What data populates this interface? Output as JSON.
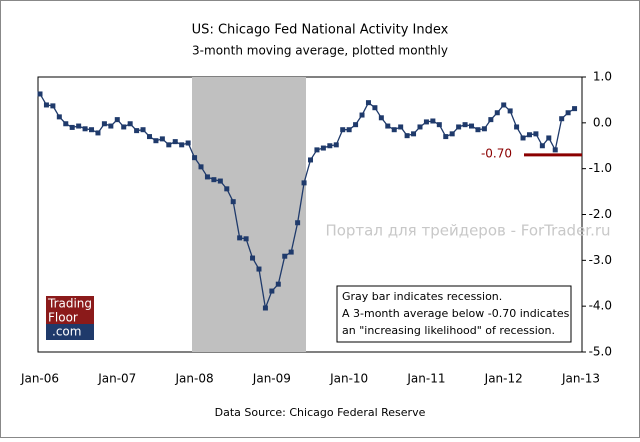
{
  "chart_data": {
    "type": "line",
    "title": "US: Chicago Fed National Activity Index",
    "subtitle": "3-month moving average, plotted monthly",
    "categories": [
      "Jan-06",
      null,
      null,
      null,
      null,
      null,
      null,
      null,
      null,
      null,
      null,
      null,
      "Jan-07",
      null,
      null,
      null,
      null,
      null,
      null,
      null,
      null,
      null,
      null,
      null,
      "Jan-08",
      null,
      null,
      null,
      null,
      null,
      null,
      null,
      null,
      null,
      null,
      null,
      "Jan-09",
      null,
      null,
      null,
      null,
      null,
      null,
      null,
      null,
      null,
      null,
      null,
      "Jan-10",
      null,
      null,
      null,
      null,
      null,
      null,
      null,
      null,
      null,
      null,
      null,
      "Jan-11",
      null,
      null,
      null,
      null,
      null,
      null,
      null,
      null,
      null,
      null,
      null,
      "Jan-12",
      null,
      null,
      null,
      null,
      null,
      null,
      null,
      null,
      null,
      null,
      null,
      "Jan-13"
    ],
    "series": [
      {
        "color": "#1f3a6b",
        "values": [
          0.63,
          0.39,
          0.37,
          0.13,
          -0.02,
          -0.1,
          -0.07,
          -0.13,
          -0.15,
          -0.22,
          -0.02,
          -0.07,
          0.07,
          -0.09,
          -0.02,
          -0.17,
          -0.15,
          -0.3,
          -0.39,
          -0.35,
          -0.48,
          -0.41,
          -0.48,
          -0.44,
          -0.76,
          -0.96,
          -1.18,
          -1.24,
          -1.27,
          -1.44,
          -1.72,
          -2.51,
          -2.53,
          -2.95,
          -3.19,
          -4.04,
          -3.67,
          -3.52,
          -2.91,
          -2.82,
          -2.18,
          -1.31,
          -0.81,
          -0.59,
          -0.55,
          -0.5,
          -0.48,
          -0.15,
          -0.15,
          -0.04,
          0.17,
          0.44,
          0.33,
          0.11,
          -0.07,
          -0.15,
          -0.09,
          -0.28,
          -0.24,
          -0.09,
          0.02,
          0.04,
          -0.04,
          -0.3,
          -0.24,
          -0.09,
          -0.04,
          -0.07,
          -0.15,
          -0.13,
          0.07,
          0.22,
          0.39,
          0.26,
          -0.09,
          -0.33,
          -0.26,
          -0.24,
          -0.5,
          -0.33,
          -0.59,
          0.09,
          0.22,
          0.31,
          null
        ]
      }
    ],
    "ylim": [
      -5,
      1
    ],
    "yticks": [
      {
        "value": 1,
        "label": "1.0"
      },
      {
        "value": 0,
        "label": "0.0"
      },
      {
        "value": -1,
        "label": "-1.0"
      },
      {
        "value": -2,
        "label": "-2.0"
      },
      {
        "value": -3,
        "label": "-3.0"
      },
      {
        "value": -4,
        "label": "-4.0"
      },
      {
        "value": -5,
        "label": "-5.0"
      }
    ],
    "reference_line": {
      "value": -0.7,
      "label": "-0.70",
      "color": "#8b0000"
    },
    "annotation": [
      "Gray bar indicates recession.",
      "A 3-month average below -0.70 indicates",
      "an \"increasing likelihood\" of recession."
    ],
    "watermark": "Портал для трейдеров - ForTrader.ru",
    "logo": [
      "Trading",
      "Floor",
      ".com"
    ],
    "source": "Data Source: Chicago Federal Reserve"
  }
}
